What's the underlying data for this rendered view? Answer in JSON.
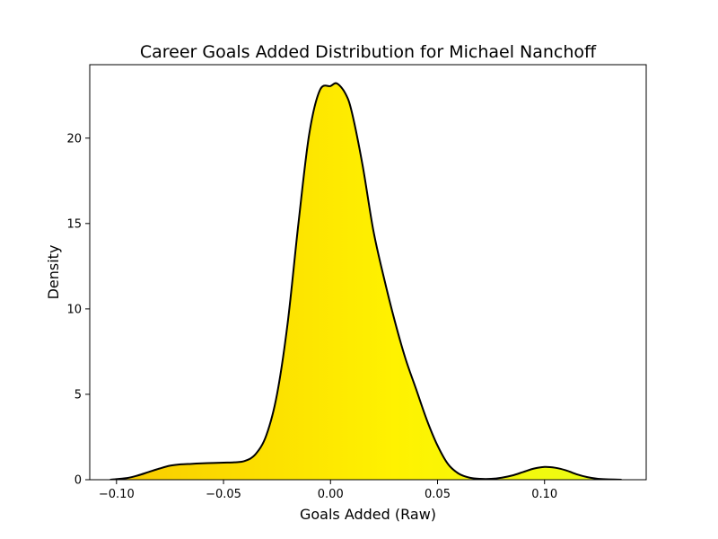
{
  "chart_data": {
    "type": "area",
    "title": "Career Goals Added Distribution for Michael Nanchoff",
    "xlabel": "Goals Added (Raw)",
    "ylabel": "Density",
    "xlim": [
      -0.1125,
      0.1475
    ],
    "ylim": [
      0,
      24.3
    ],
    "xticks": [
      -0.1,
      -0.05,
      0.0,
      0.05,
      0.1
    ],
    "xtick_labels": [
      "−0.10",
      "−0.05",
      "0.00",
      "0.05",
      "0.10"
    ],
    "yticks": [
      0,
      5,
      10,
      15,
      20
    ],
    "ytick_labels": [
      "0",
      "5",
      "10",
      "15",
      "20"
    ],
    "grid": false,
    "legend": "none",
    "series": [
      {
        "x": [
          -0.103,
          -0.095,
          -0.09,
          -0.085,
          -0.08,
          -0.075,
          -0.07,
          -0.065,
          -0.06,
          -0.055,
          -0.05,
          -0.045,
          -0.04,
          -0.035,
          -0.03,
          -0.025,
          -0.02,
          -0.015,
          -0.01,
          -0.005,
          0.0,
          0.003,
          0.007,
          0.01,
          0.015,
          0.02,
          0.025,
          0.03,
          0.035,
          0.04,
          0.045,
          0.05,
          0.055,
          0.06,
          0.065,
          0.07,
          0.075,
          0.08,
          0.085,
          0.09,
          0.095,
          0.1,
          0.105,
          0.11,
          0.115,
          0.12,
          0.125,
          0.13,
          0.136
        ],
        "values": [
          0.0,
          0.1,
          0.25,
          0.45,
          0.65,
          0.82,
          0.9,
          0.93,
          0.96,
          0.98,
          1.0,
          1.02,
          1.1,
          1.5,
          2.6,
          5.0,
          9.2,
          15.0,
          20.2,
          22.8,
          23.05,
          23.2,
          22.6,
          21.5,
          18.4,
          14.6,
          11.8,
          9.3,
          7.1,
          5.3,
          3.5,
          2.0,
          0.9,
          0.35,
          0.12,
          0.05,
          0.05,
          0.12,
          0.25,
          0.45,
          0.65,
          0.75,
          0.7,
          0.55,
          0.32,
          0.15,
          0.05,
          0.02,
          0.0
        ]
      }
    ],
    "colors": {
      "line": "#000000",
      "fill_start": "#F8C800",
      "fill_mid": "#FFF200",
      "fill_end": "#E6FF1A"
    }
  }
}
